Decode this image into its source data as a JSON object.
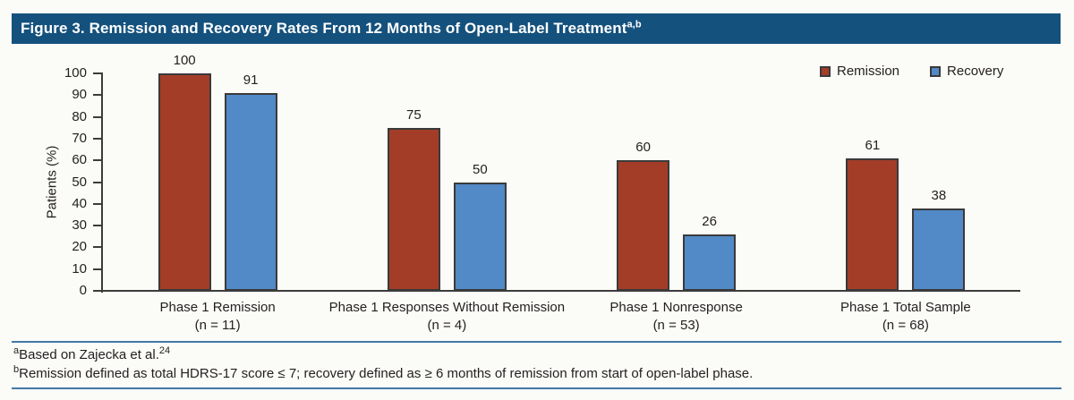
{
  "title": {
    "text": "Figure 3. Remission and Recovery Rates From 12 Months of Open-Label Treatment",
    "superscript": "a,b"
  },
  "colors": {
    "header_bg": "#14517D",
    "remission_bar": "#A33D28",
    "recovery_bar": "#5289C7",
    "bar_border": "#3A3A3A",
    "axis": "#3C3C3C",
    "rule_blue": "#4478A6"
  },
  "chart_data": {
    "type": "bar",
    "title": "",
    "xlabel": "",
    "ylabel": "Patients (%)",
    "ylim": [
      0,
      100
    ],
    "ytick_step": 10,
    "grid": false,
    "legend_position": "top-right",
    "bar_labels": true,
    "categories": [
      {
        "label": "Phase 1 Remission",
        "n": "(n = 11)"
      },
      {
        "label": "Phase 1 Responses Without Remission",
        "n": "(n = 4)"
      },
      {
        "label": "Phase 1 Nonresponse",
        "n": "(n = 53)"
      },
      {
        "label": "Phase 1 Total Sample",
        "n": "(n = 68)"
      }
    ],
    "series": [
      {
        "name": "Remission",
        "color": "#A33D28",
        "values": [
          100,
          75,
          60,
          61
        ]
      },
      {
        "name": "Recovery",
        "color": "#5289C7",
        "values": [
          91,
          50,
          26,
          38
        ]
      }
    ]
  },
  "footnotes": [
    {
      "marker": "a",
      "text": "Based on Zajecka et al.",
      "suffix": "24"
    },
    {
      "marker": "b",
      "text": "Remission defined as total HDRS-17 score ≤ 7; recovery defined as ≥ 6 months of remission from start of open-label phase.",
      "suffix": ""
    }
  ]
}
